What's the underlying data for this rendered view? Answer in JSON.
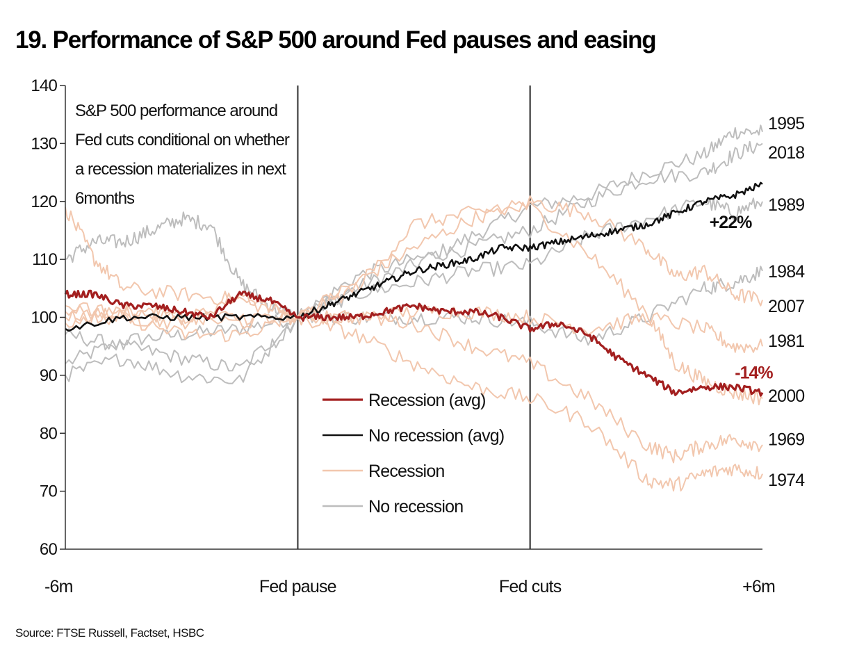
{
  "chart_data": {
    "type": "line",
    "title": "19. Performance of S&P 500 around Fed pauses and easing",
    "ylim": [
      60,
      140
    ],
    "yticks": [
      "140",
      "130",
      "120",
      "110",
      "100",
      "90",
      "80",
      "70",
      "60"
    ],
    "x_domain": [
      0,
      12
    ],
    "xticks": [
      {
        "x": 0,
        "label": "-6m"
      },
      {
        "x": 4,
        "label": "Fed pause"
      },
      {
        "x": 8,
        "label": "Fed cuts"
      },
      {
        "x": 12,
        "label": "+6m"
      }
    ],
    "vertical_lines": [
      4,
      8
    ],
    "annotation": [
      "S&P 500 performance around",
      "Fed cuts conditional on whether",
      "a recession materializes in next",
      "6months"
    ],
    "legend": [
      {
        "label": "Recession (avg)",
        "color": "#a31f1f"
      },
      {
        "label": "No recession (avg)",
        "color": "#111111"
      },
      {
        "label": "Recession",
        "color": "#f2c7ae"
      },
      {
        "label": "No recession",
        "color": "#bdbdbd"
      }
    ],
    "colors": {
      "recession_avg": "#a31f1f",
      "no_recession_avg": "#111111",
      "recession": "#f2c7ae",
      "no_recession": "#bdbdbd",
      "axis": "#333333"
    },
    "series": [
      {
        "name": "1995",
        "group": "no_recession",
        "points": [
          [
            0,
            92
          ],
          [
            1,
            96
          ],
          [
            2,
            97
          ],
          [
            3,
            98
          ],
          [
            4,
            100
          ],
          [
            5,
            105
          ],
          [
            6,
            109
          ],
          [
            7,
            114
          ],
          [
            8,
            119
          ],
          [
            9,
            121
          ],
          [
            10,
            125
          ],
          [
            11,
            128
          ],
          [
            11.5,
            132
          ],
          [
            12,
            132
          ]
        ]
      },
      {
        "name": "2018",
        "group": "no_recession",
        "points": [
          [
            0,
            97
          ],
          [
            1,
            95
          ],
          [
            2,
            93
          ],
          [
            3,
            91
          ],
          [
            4,
            100
          ],
          [
            5,
            107
          ],
          [
            6,
            110
          ],
          [
            7,
            112
          ],
          [
            8,
            115
          ],
          [
            9,
            120
          ],
          [
            10,
            124
          ],
          [
            11,
            125
          ],
          [
            11.5,
            128
          ],
          [
            12,
            130
          ]
        ]
      },
      {
        "name": "1989",
        "group": "no_recession",
        "points": [
          [
            0,
            110
          ],
          [
            0.5,
            113
          ],
          [
            1,
            113
          ],
          [
            1.5,
            115
          ],
          [
            2,
            117
          ],
          [
            2.5,
            116
          ],
          [
            3,
            106
          ],
          [
            3.5,
            102
          ],
          [
            4,
            100
          ],
          [
            5,
            104
          ],
          [
            6,
            106
          ],
          [
            7,
            108
          ],
          [
            8,
            109
          ],
          [
            9,
            114
          ],
          [
            10,
            117
          ],
          [
            11,
            120
          ],
          [
            11.5,
            118
          ],
          [
            12,
            120
          ]
        ]
      },
      {
        "name": "1984",
        "group": "no_recession",
        "points": [
          [
            0,
            90
          ],
          [
            1,
            93
          ],
          [
            2,
            90
          ],
          [
            3,
            89
          ],
          [
            4,
            100
          ],
          [
            5,
            100
          ],
          [
            6,
            100
          ],
          [
            7,
            100
          ],
          [
            8,
            99
          ],
          [
            9,
            96
          ],
          [
            10,
            100
          ],
          [
            11,
            105
          ],
          [
            11.5,
            106
          ],
          [
            12,
            108
          ]
        ]
      },
      {
        "name": "2007",
        "group": "recession",
        "points": [
          [
            0,
            119
          ],
          [
            0.5,
            110
          ],
          [
            1,
            105
          ],
          [
            2,
            104
          ],
          [
            3,
            103
          ],
          [
            4,
            100
          ],
          [
            5,
            106
          ],
          [
            6,
            112
          ],
          [
            7,
            117
          ],
          [
            8,
            120
          ],
          [
            9,
            118
          ],
          [
            10,
            112
          ],
          [
            10.5,
            107
          ],
          [
            11,
            108
          ],
          [
            11.5,
            104
          ],
          [
            12,
            103
          ]
        ]
      },
      {
        "name": "1981",
        "group": "recession",
        "points": [
          [
            0,
            100
          ],
          [
            1,
            100
          ],
          [
            2,
            99
          ],
          [
            3,
            104
          ],
          [
            4,
            100
          ],
          [
            5,
            100
          ],
          [
            6,
            101
          ],
          [
            7,
            101
          ],
          [
            8,
            100
          ],
          [
            9,
            98
          ],
          [
            10,
            100
          ],
          [
            11,
            98
          ],
          [
            11.5,
            95
          ],
          [
            12,
            95
          ]
        ]
      },
      {
        "name": "2000",
        "group": "recession",
        "points": [
          [
            0,
            99
          ],
          [
            1,
            101
          ],
          [
            2,
            100
          ],
          [
            3,
            100
          ],
          [
            4,
            100
          ],
          [
            5,
            105
          ],
          [
            6,
            116
          ],
          [
            7,
            118
          ],
          [
            8,
            119
          ],
          [
            9,
            111
          ],
          [
            10,
            101
          ],
          [
            10.5,
            92
          ],
          [
            11,
            89
          ],
          [
            11.5,
            87
          ],
          [
            12,
            86
          ]
        ]
      },
      {
        "name": "1969",
        "group": "recession",
        "points": [
          [
            0,
            101
          ],
          [
            1,
            101
          ],
          [
            2,
            100
          ],
          [
            3,
            99
          ],
          [
            4,
            100
          ],
          [
            5,
            100
          ],
          [
            6,
            99
          ],
          [
            7,
            95
          ],
          [
            8,
            92
          ],
          [
            9,
            86
          ],
          [
            10,
            78
          ],
          [
            10.5,
            76
          ],
          [
            11,
            78
          ],
          [
            11.5,
            79
          ],
          [
            12,
            78
          ]
        ]
      },
      {
        "name": "1974",
        "group": "recession",
        "points": [
          [
            0,
            102
          ],
          [
            1,
            100
          ],
          [
            2,
            97
          ],
          [
            3,
            97
          ],
          [
            4,
            100
          ],
          [
            5,
            97
          ],
          [
            6,
            92
          ],
          [
            7,
            88
          ],
          [
            8,
            86
          ],
          [
            9,
            82
          ],
          [
            10,
            72
          ],
          [
            10.5,
            71
          ],
          [
            11,
            73
          ],
          [
            11.5,
            74
          ],
          [
            12,
            73
          ]
        ]
      },
      {
        "name": "Recession (avg)",
        "group": "recession_avg",
        "points": [
          [
            0,
            104
          ],
          [
            0.5,
            104
          ],
          [
            1,
            102
          ],
          [
            1.5,
            102
          ],
          [
            2,
            101
          ],
          [
            2.5,
            100
          ],
          [
            3,
            104
          ],
          [
            3.5,
            103
          ],
          [
            4,
            100
          ],
          [
            4.5,
            100
          ],
          [
            5,
            100
          ],
          [
            5.5,
            101
          ],
          [
            6,
            102
          ],
          [
            6.5,
            101
          ],
          [
            7,
            101
          ],
          [
            7.5,
            100
          ],
          [
            8,
            98
          ],
          [
            8.5,
            99
          ],
          [
            9,
            97
          ],
          [
            9.5,
            93
          ],
          [
            10,
            90
          ],
          [
            10.5,
            87
          ],
          [
            11,
            88
          ],
          [
            11.5,
            88
          ],
          [
            12,
            87
          ]
        ]
      },
      {
        "name": "No recession (avg)",
        "group": "no_recession_avg",
        "points": [
          [
            0,
            98
          ],
          [
            1,
            100
          ],
          [
            2,
            100
          ],
          [
            3,
            100
          ],
          [
            4,
            100
          ],
          [
            4.5,
            102
          ],
          [
            5,
            104
          ],
          [
            5.5,
            106
          ],
          [
            6,
            108
          ],
          [
            6.5,
            109
          ],
          [
            7,
            110
          ],
          [
            7.5,
            112
          ],
          [
            8,
            112
          ],
          [
            8.5,
            113
          ],
          [
            9,
            114
          ],
          [
            9.5,
            115
          ],
          [
            10,
            116
          ],
          [
            10.5,
            118
          ],
          [
            11,
            120
          ],
          [
            11.5,
            121
          ],
          [
            12,
            123
          ]
        ]
      }
    ],
    "end_labels": [
      {
        "label": "1995",
        "y": 133.5
      },
      {
        "label": "2018",
        "y": 128.5
      },
      {
        "label": "1989",
        "y": 119.5
      },
      {
        "label": "1984",
        "y": 108
      },
      {
        "label": "2007",
        "y": 102
      },
      {
        "label": "1981",
        "y": 96
      },
      {
        "label": "2000",
        "y": 86.5
      },
      {
        "label": "1969",
        "y": 79
      },
      {
        "label": "1974",
        "y": 72
      }
    ],
    "callouts": [
      {
        "label": "+22%",
        "x": 11.45,
        "y": 116.5,
        "color": "#111111"
      },
      {
        "label": "-14%",
        "x": 11.85,
        "y": 90.5,
        "color": "#a31f1f"
      }
    ]
  },
  "source": "Source: FTSE Russell, Factset, HSBC"
}
